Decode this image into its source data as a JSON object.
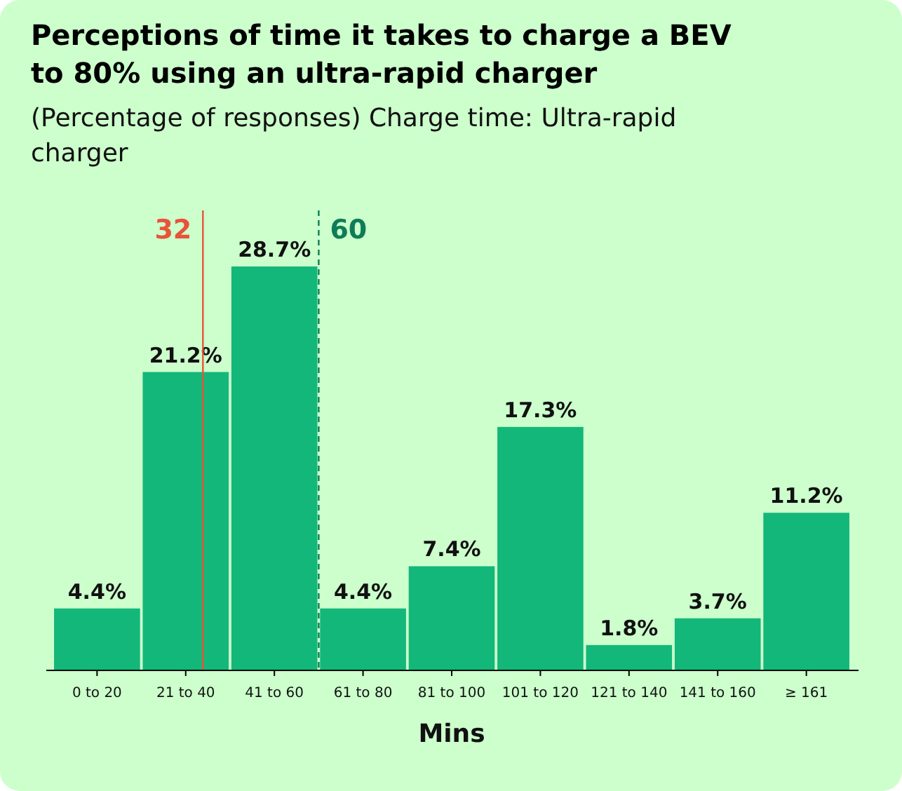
{
  "chart_data": {
    "type": "bar",
    "title": "Perceptions of time it takes to charge a BEV to 80% using an ultra-rapid charger",
    "subtitle": "(Percentage of responses) Charge time: Ultra-rapid charger",
    "xlabel": "Mins",
    "categories": [
      "0 to 20",
      "21 to 40",
      "41 to 60",
      "61 to 80",
      "81 to 100",
      "101 to 120",
      "121 to 140",
      "141 to 160",
      "≥ 161"
    ],
    "values": [
      4.4,
      21.2,
      28.7,
      4.4,
      7.4,
      17.3,
      1.8,
      3.7,
      11.2
    ],
    "value_labels": [
      "4.4%",
      "21.2%",
      "28.7%",
      "4.4%",
      "7.4%",
      "17.3%",
      "1.8%",
      "3.7%",
      "11.2%"
    ],
    "color": "#13b77a",
    "ref_lines": [
      {
        "axis": "x",
        "value": "21 to 40",
        "label": "32",
        "color": "#e8533a",
        "line_style": "solid"
      },
      {
        "axis": "x",
        "value": "41 to 60",
        "label": "60",
        "color": "#0e7d57",
        "line_style": "dashed"
      }
    ]
  }
}
